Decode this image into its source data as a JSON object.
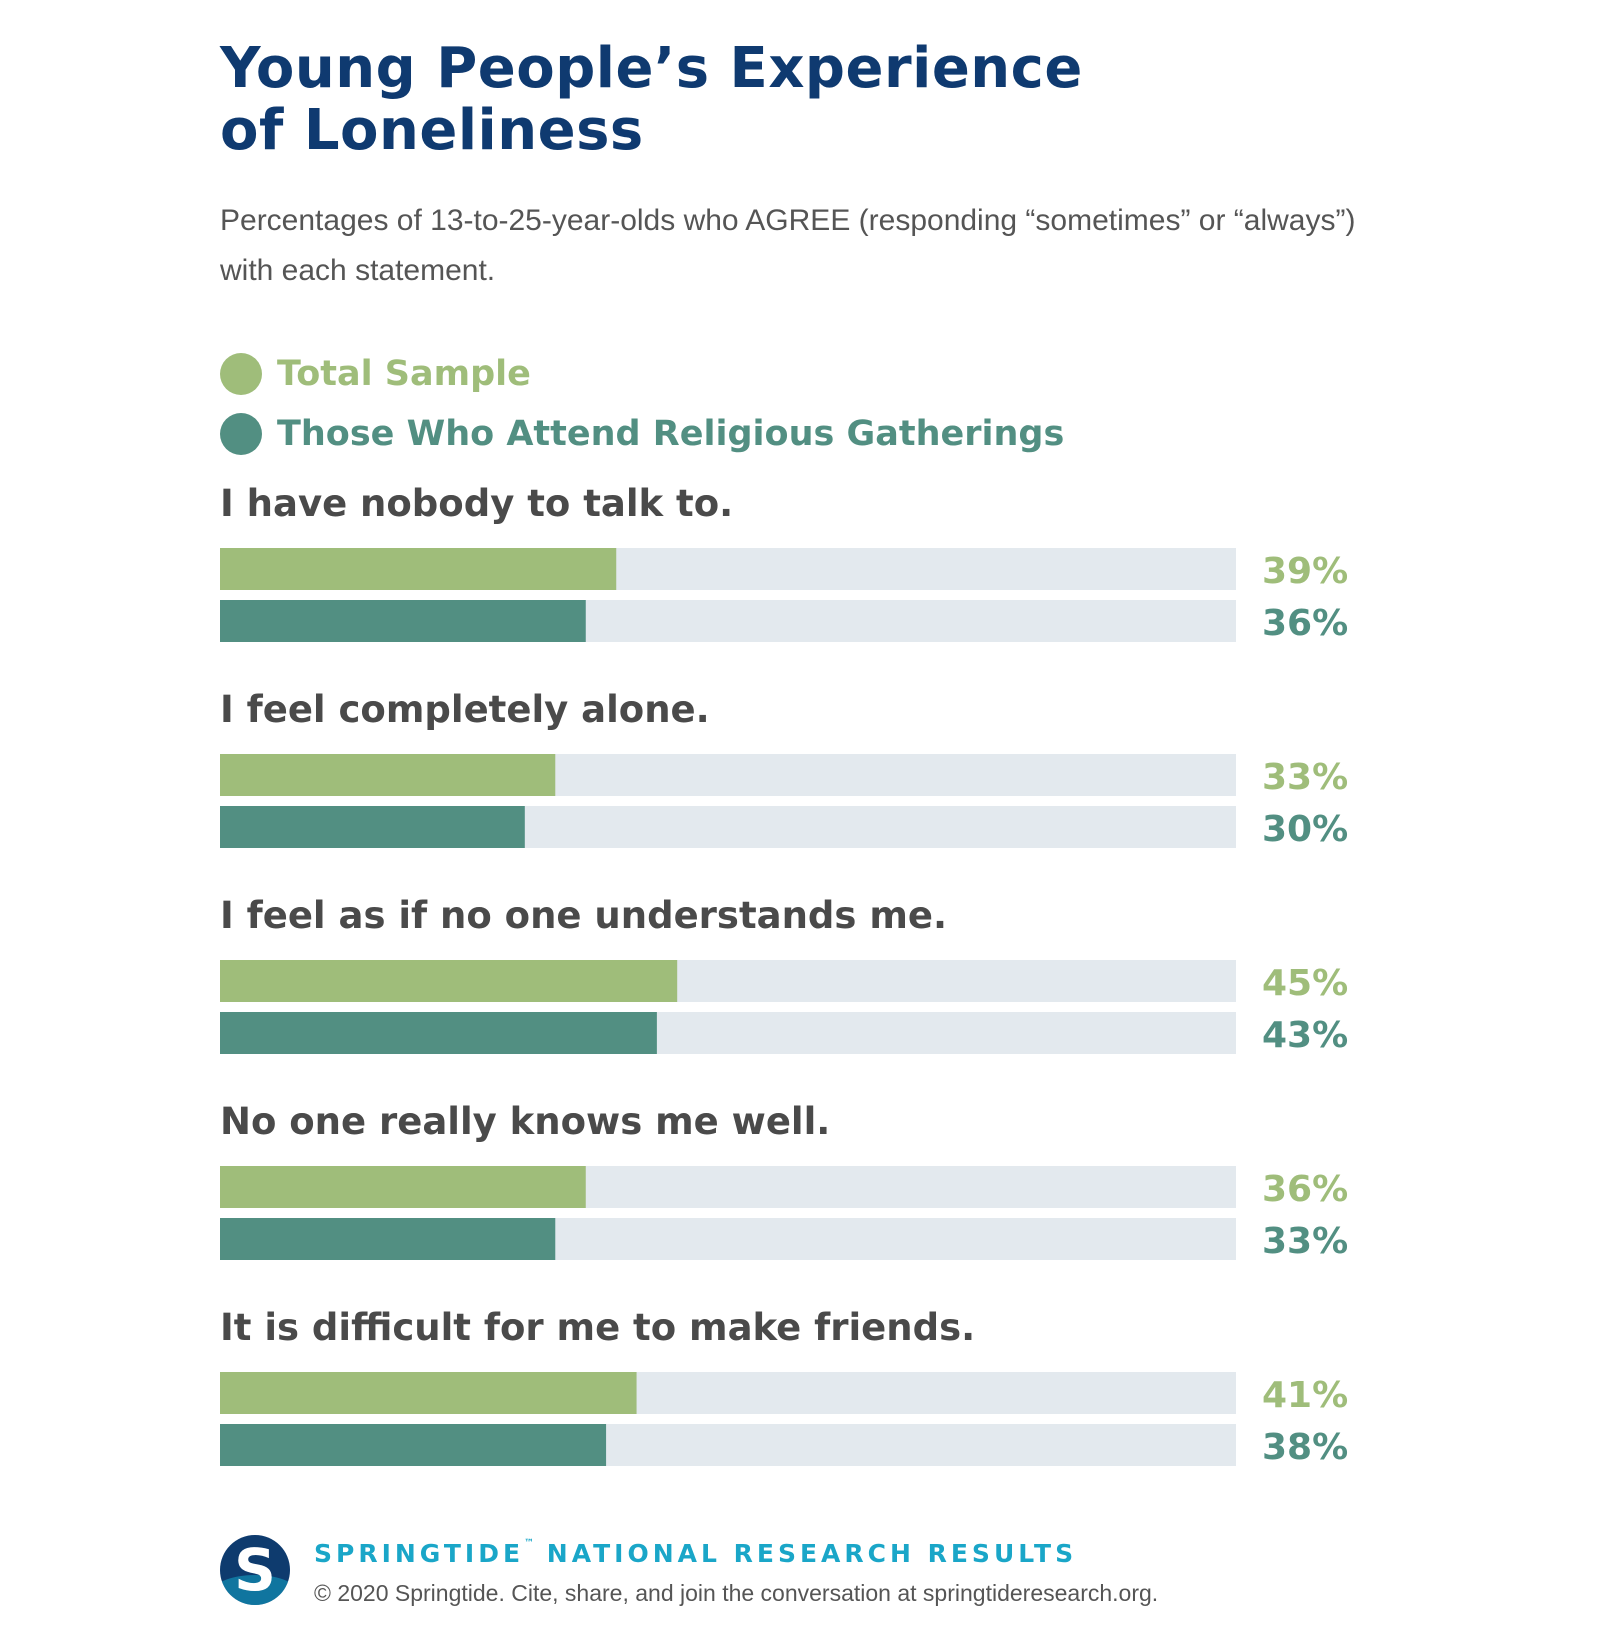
{
  "title_line1": "Young People’s Experience",
  "title_line2": "of Loneliness",
  "subtitle": "Percentages of 13-to-25-year-olds who AGREE (responding “sometimes” or “always”) with each statement.",
  "colors": {
    "total": "#9fbd7a",
    "religious": "#528f82",
    "track": "#e3e9ee",
    "title": "#0f3a70",
    "statement": "#4a4a4a"
  },
  "legend": [
    {
      "label": "Total Sample",
      "color": "#9fbd7a"
    },
    {
      "label": "Those Who Attend Religious Gatherings",
      "color": "#528f82"
    }
  ],
  "chart_data": {
    "type": "bar",
    "orientation": "horizontal",
    "categories": [
      "I have nobody to talk to.",
      "I feel completely alone.",
      "I feel as if no one understands me.",
      "No one really knows me well.",
      "It is difficult for me to make friends."
    ],
    "series": [
      {
        "name": "Total Sample",
        "values": [
          39,
          33,
          45,
          36,
          41
        ],
        "color": "#9fbd7a"
      },
      {
        "name": "Those Who Attend Religious Gatherings",
        "values": [
          36,
          30,
          43,
          33,
          38
        ],
        "color": "#528f82"
      }
    ],
    "value_suffix": "%",
    "xlim": [
      0,
      100
    ],
    "data_labels": true,
    "grid": false,
    "legend_position": "top-left"
  },
  "footer": {
    "logo_letter": "S",
    "brand": "SPRINGTIDE",
    "trademark": "™",
    "heading_rest": " NATIONAL RESEARCH RESULTS",
    "copyright": "© 2020 Springtide. Cite, share, and join the conversation at springtideresearch.org."
  }
}
